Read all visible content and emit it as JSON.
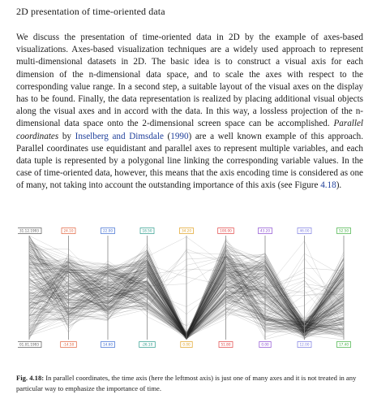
{
  "section_title": "2D presentation of time-oriented data",
  "paragraph": {
    "p1": "We discuss the presentation of time-oriented data in 2D by the example of axes-based visualizations. Axes-based visualization techniques are a widely used approach to represent multi-dimensional datasets in 2D. The basic idea is to construct a visual axis for each dimension of the n-dimensional data space, and to scale the axes with respect to the corresponding value range. In a second step, a suitable layout of the visual axes on the display has to be found. Finally, the data representation is realized by placing additional visual objects along the visual axes and in accord with the data. In this way, a lossless projection of the n-dimensional data space onto the 2-dimensional screen space can be accomplished. ",
    "emph": "Parallel coordinates",
    "p2": " by ",
    "cite_link": "Inselberg and Dimsdale",
    "cite_year_open": " (",
    "cite_year": "1990",
    "p3": ") are a well known example of this approach. Parallel coordinates use equidistant and parallel axes to represent multiple variables, and each data tuple is represented by a polygonal line linking the corresponding variable values. In the case of time-oriented data, however, this means that the axis encoding time is considered as one of many, not taking into account the outstanding importance of this axis (see Figure ",
    "fig_ref": "4.18",
    "p4": ")."
  },
  "figure": {
    "axis_labels_top": [
      "31.12.1993",
      "24.10",
      "22.00",
      "18.50",
      "34.20",
      "100.00",
      "43.20",
      "46.00",
      "52.50"
    ],
    "axis_labels_bottom": [
      "01.01.1993",
      "-14.50",
      "14.60",
      "-26.10",
      "0.00",
      "51.80",
      "0.00",
      "12.00",
      "17.40"
    ],
    "label_colors": [
      "#555555",
      "#e0603a",
      "#3a6ad0",
      "#2a9a8a",
      "#e0a020",
      "#e04040",
      "#8a4ad0",
      "#7a7ae0",
      "#40b040"
    ]
  },
  "caption": {
    "label": "Fig. 4.18:",
    "text": " In parallel coordinates, the time axis (here the leftmost axis) is just one of many axes and it is not treated in any particular way to emphasize the importance of time."
  }
}
